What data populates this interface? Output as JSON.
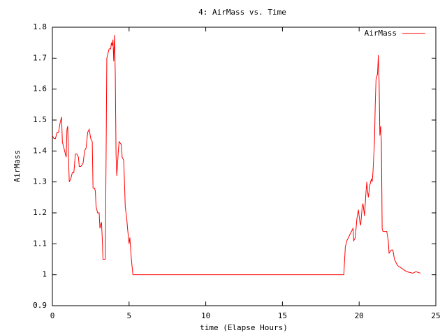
{
  "chart_data": {
    "type": "line",
    "title": "4: AirMass vs. Time",
    "xlabel": "time (Elapse Hours)",
    "ylabel": "AirMass",
    "xlim": [
      0,
      25
    ],
    "xticks": [
      0,
      5,
      10,
      15,
      20,
      25
    ],
    "ylim": [
      0.9,
      1.8
    ],
    "yticks": [
      0.9,
      1,
      1.1,
      1.2,
      1.3,
      1.4,
      1.5,
      1.6,
      1.7,
      1.8
    ],
    "legend": "top-right",
    "series": [
      {
        "name": "AirMass",
        "color": "#ff0000",
        "x": [
          0,
          0.1,
          0.2,
          0.3,
          0.4,
          0.5,
          0.6,
          0.65,
          0.8,
          0.9,
          0.95,
          1.0,
          1.05,
          1.1,
          1.2,
          1.3,
          1.4,
          1.5,
          1.6,
          1.7,
          1.75,
          1.85,
          2.0,
          2.1,
          2.2,
          2.3,
          2.4,
          2.5,
          2.6,
          2.65,
          2.75,
          2.8,
          2.85,
          2.95,
          3.05,
          3.1,
          3.2,
          3.25,
          3.3,
          3.45,
          3.55,
          3.65,
          3.7,
          3.8,
          3.85,
          3.9,
          3.95,
          4.0,
          4.05,
          4.1,
          4.15,
          4.2,
          4.3,
          4.35,
          4.5,
          4.55,
          4.65,
          4.7,
          4.75,
          4.85,
          4.9,
          5.0,
          5.05,
          5.15,
          5.25,
          19.0,
          19.1,
          19.2,
          19.4,
          19.6,
          19.65,
          19.75,
          19.85,
          19.95,
          20.05,
          20.1,
          20.2,
          20.25,
          20.35,
          20.45,
          20.5,
          20.55,
          20.6,
          20.7,
          20.8,
          20.85,
          20.9,
          21.0,
          21.05,
          21.1,
          21.2,
          21.25,
          21.3,
          21.35,
          21.4,
          21.45,
          21.5,
          21.55,
          21.7,
          21.8,
          21.9,
          21.95,
          22.1,
          22.2,
          22.3,
          22.5,
          22.8,
          23.1,
          23.5,
          23.7,
          24.0
        ],
        "values": [
          1.45,
          1.44,
          1.44,
          1.46,
          1.46,
          1.49,
          1.51,
          1.43,
          1.4,
          1.38,
          1.47,
          1.48,
          1.38,
          1.3,
          1.31,
          1.33,
          1.33,
          1.39,
          1.39,
          1.38,
          1.35,
          1.35,
          1.36,
          1.4,
          1.41,
          1.46,
          1.47,
          1.44,
          1.43,
          1.28,
          1.28,
          1.27,
          1.22,
          1.2,
          1.2,
          1.15,
          1.17,
          1.12,
          1.05,
          1.05,
          1.7,
          1.72,
          1.73,
          1.73,
          1.75,
          1.74,
          1.76,
          1.69,
          1.775,
          1.65,
          1.39,
          1.32,
          1.4,
          1.43,
          1.42,
          1.38,
          1.37,
          1.3,
          1.22,
          1.18,
          1.15,
          1.1,
          1.12,
          1.05,
          1.0,
          1.0,
          1.09,
          1.11,
          1.13,
          1.15,
          1.11,
          1.12,
          1.18,
          1.21,
          1.17,
          1.16,
          1.22,
          1.23,
          1.19,
          1.27,
          1.3,
          1.27,
          1.25,
          1.29,
          1.31,
          1.3,
          1.33,
          1.43,
          1.55,
          1.63,
          1.65,
          1.71,
          1.63,
          1.45,
          1.48,
          1.43,
          1.15,
          1.14,
          1.14,
          1.14,
          1.11,
          1.07,
          1.08,
          1.08,
          1.05,
          1.03,
          1.02,
          1.01,
          1.005,
          1.01,
          1.005
        ]
      }
    ]
  }
}
